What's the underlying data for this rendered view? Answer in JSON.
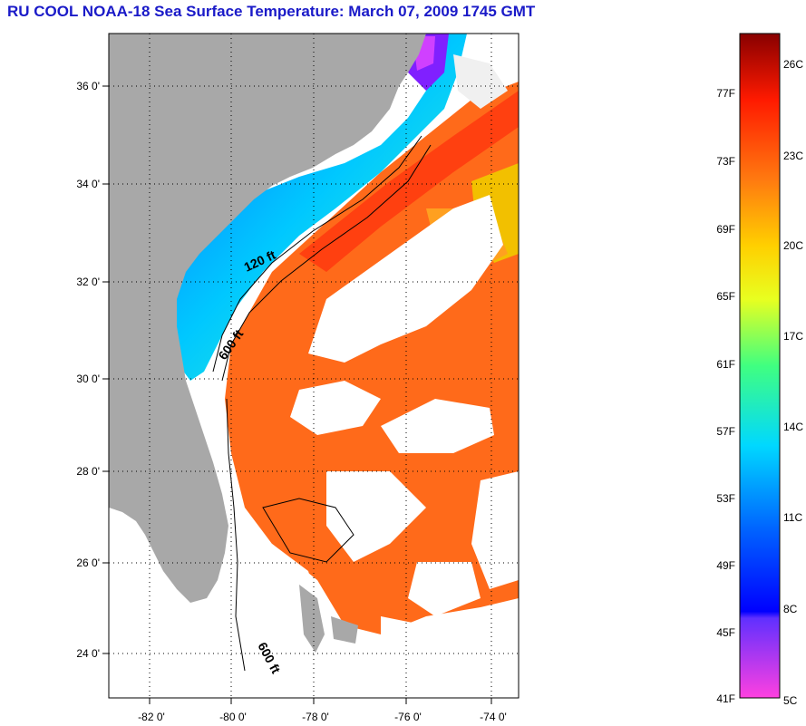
{
  "title": "RU COOL  NOAA-18  Sea Surface Temperature:  March 07, 2009 1745 GMT",
  "map": {
    "lat_ticks": [
      "36 0'",
      "34 0'",
      "32 0'",
      "30 0'",
      "28 0'",
      "26 0'",
      "24 0'"
    ],
    "lon_ticks": [
      "-82 0'",
      "-80 0'",
      "-78 0'",
      "-76 0'",
      "-74 0'"
    ],
    "isobath_labels": [
      "120 ft",
      "600 ft",
      "600 ft"
    ]
  },
  "colorbar": {
    "fahrenheit_labels": [
      "77F",
      "73F",
      "69F",
      "65F",
      "61F",
      "57F",
      "53F",
      "49F",
      "45F",
      "41F"
    ],
    "celsius_labels": [
      "26C",
      "23C",
      "20C",
      "17C",
      "14C",
      "11C",
      "8C",
      "5C"
    ]
  },
  "colors": {
    "title": "#1a1ac8",
    "land": "#a8a8a8",
    "cloud": "#ffffff",
    "warm_water": "#ff6a1a",
    "cold_water": "#1a7aff"
  }
}
